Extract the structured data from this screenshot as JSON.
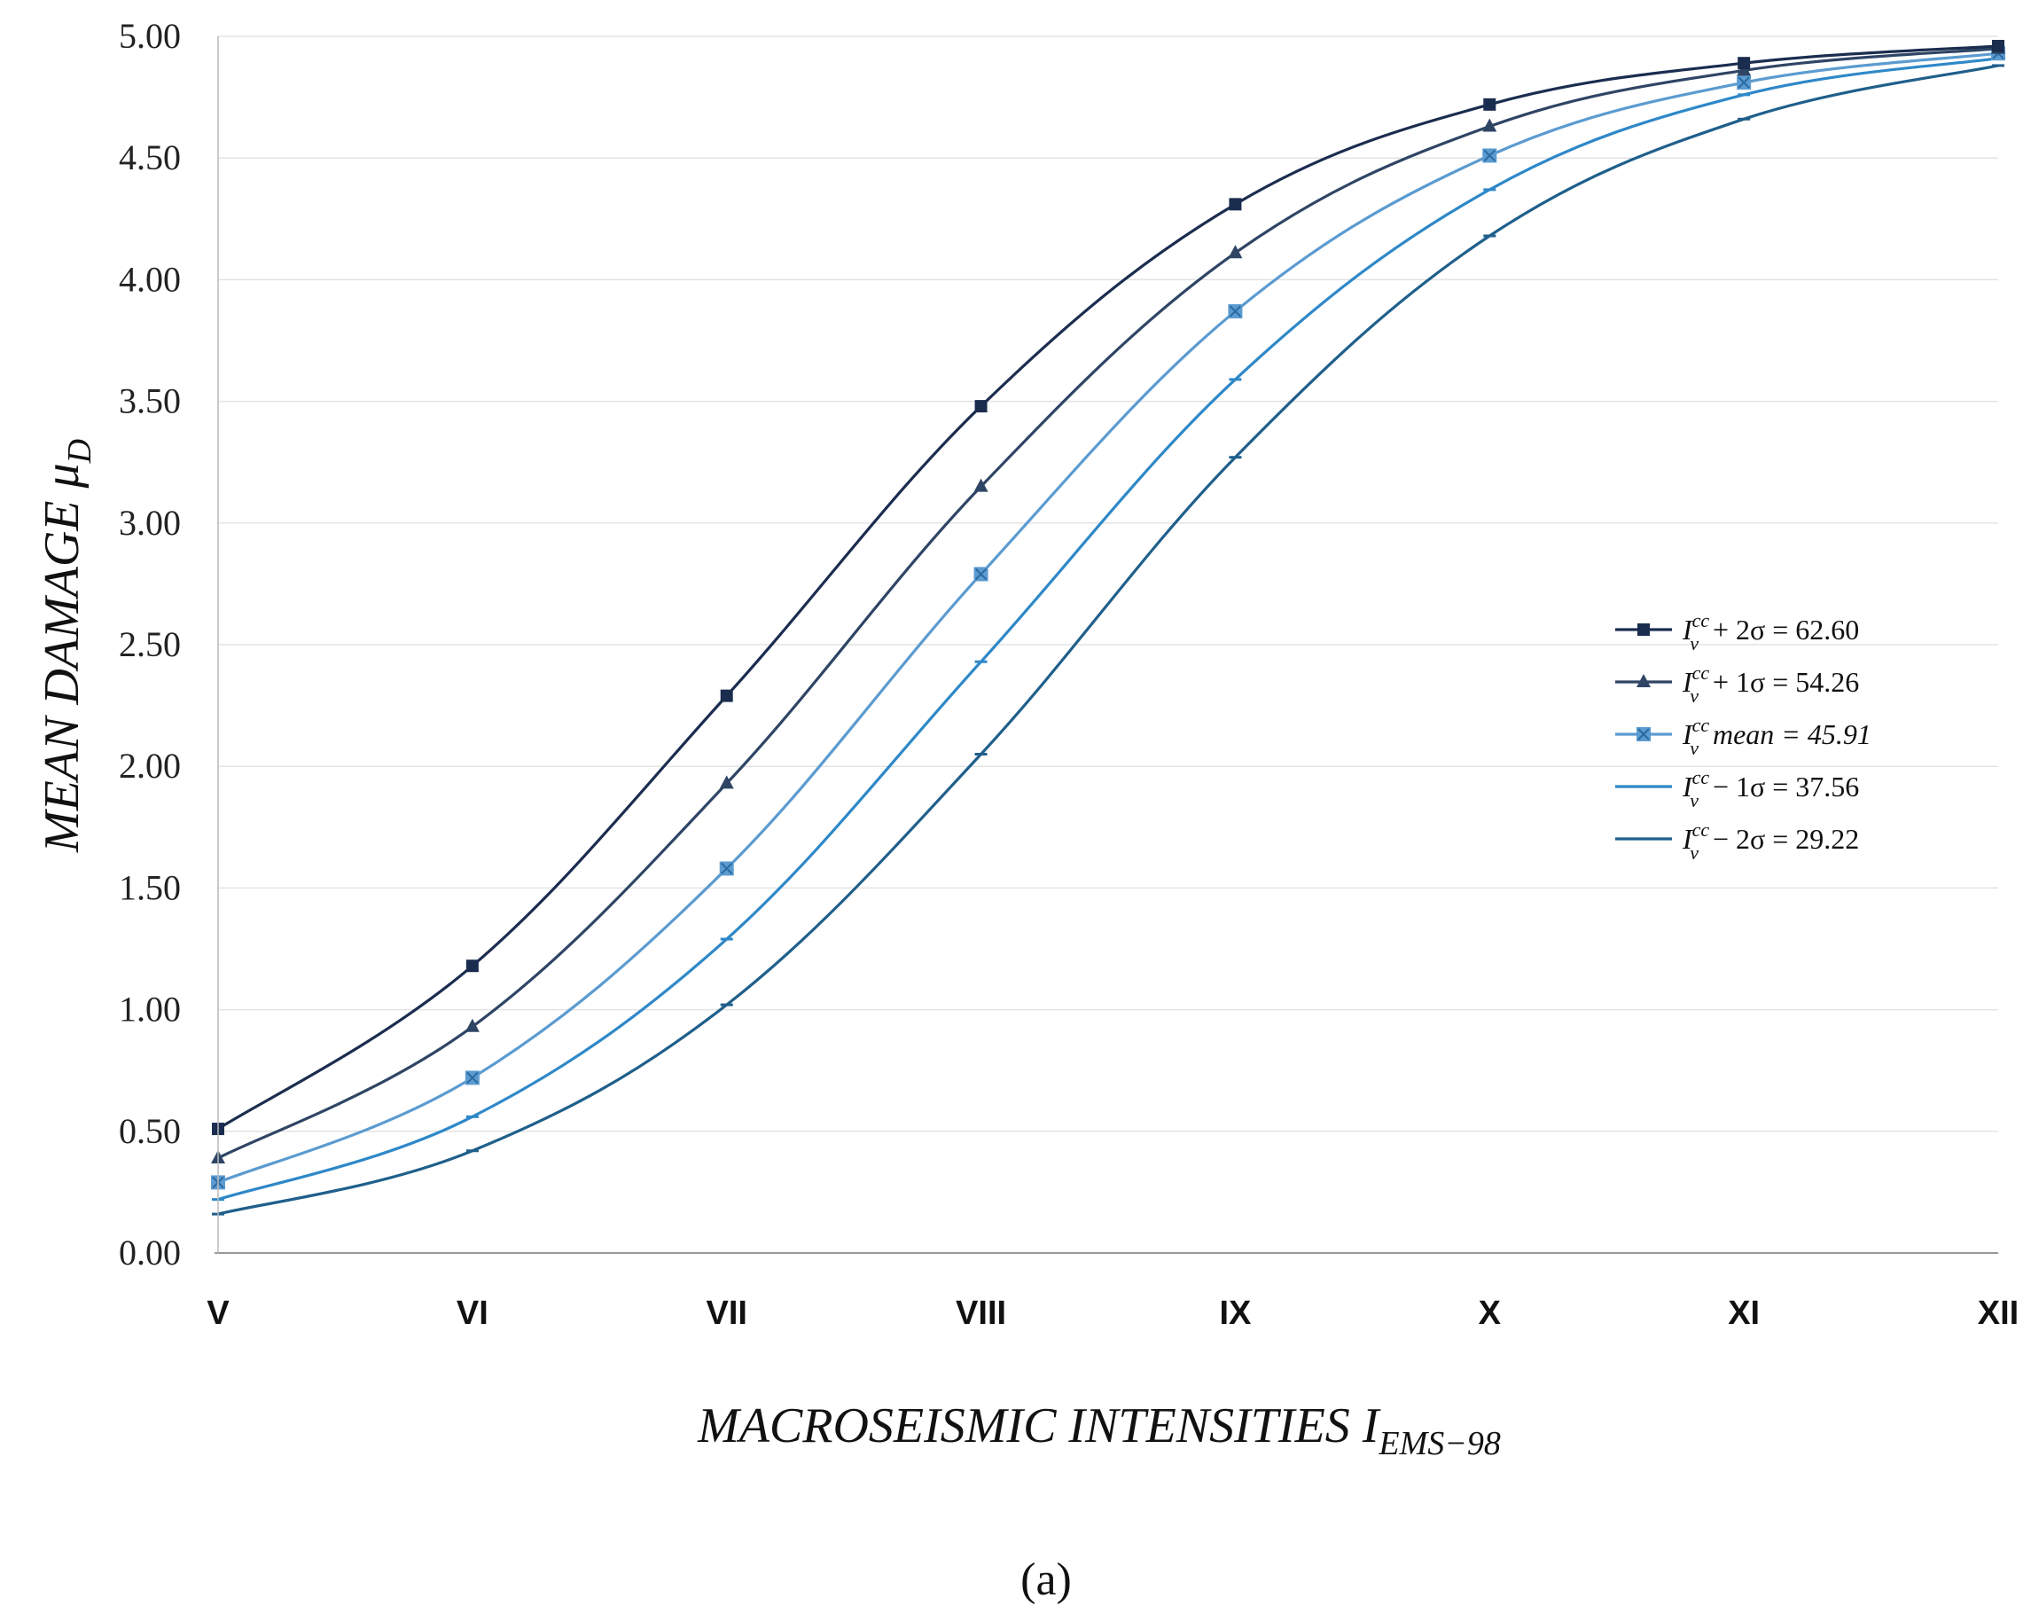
{
  "chart_data": {
    "type": "line",
    "title": "",
    "xlabel": "MACROSEISMIC INTENSITIES I_EMS−98",
    "xlabel_main": "MACROSEISMIC INTENSITIES I",
    "xlabel_sub": "EMS−98",
    "ylabel": "MEAN DAMAGE μ_D",
    "ylabel_main": "MEAN DAMAGE μ",
    "ylabel_sub": "D",
    "categories": [
      "V",
      "VI",
      "VII",
      "VIII",
      "IX",
      "X",
      "XI",
      "XII"
    ],
    "ylim": [
      0,
      5
    ],
    "yticks": [
      "0.00",
      "0.50",
      "1.00",
      "1.50",
      "2.00",
      "2.50",
      "3.00",
      "3.50",
      "4.00",
      "4.50",
      "5.00"
    ],
    "grid": true,
    "legend_position": "right",
    "series": [
      {
        "name": "I_v^cc + 2σ = 62.60",
        "legend_prefix": "+ 2σ = 62.60",
        "marker": "square",
        "color": "#1b2d4f",
        "values": [
          0.51,
          1.18,
          2.29,
          3.48,
          4.31,
          4.72,
          4.89,
          4.96
        ]
      },
      {
        "name": "I_v^cc + 1σ = 54.26",
        "legend_prefix": "+ 1σ = 54.26",
        "marker": "triangle",
        "color": "#2f4565",
        "values": [
          0.39,
          0.93,
          1.93,
          3.15,
          4.11,
          4.63,
          4.86,
          4.95
        ]
      },
      {
        "name": "I_v^cc mean = 45.91",
        "legend_prefix": "mean = 45.91",
        "marker": "x-square",
        "color": "#5b9bd0",
        "values": [
          0.29,
          0.72,
          1.58,
          2.79,
          3.87,
          4.51,
          4.81,
          4.93
        ]
      },
      {
        "name": "I_v^cc − 1σ = 37.56",
        "legend_prefix": "− 1σ = 37.56",
        "marker": "dash",
        "color": "#2e88c8",
        "values": [
          0.22,
          0.56,
          1.29,
          2.43,
          3.59,
          4.37,
          4.76,
          4.91
        ]
      },
      {
        "name": "I_v^cc − 2σ = 29.22",
        "legend_prefix": "− 2σ = 29.22",
        "marker": "dash",
        "color": "#1f5f8b",
        "values": [
          0.16,
          0.42,
          1.02,
          2.05,
          3.27,
          4.18,
          4.66,
          4.88
        ]
      }
    ],
    "legend_symbol_base": "I",
    "legend_symbol_sub": "v",
    "legend_symbol_sup": "cc",
    "caption": "(a)"
  }
}
